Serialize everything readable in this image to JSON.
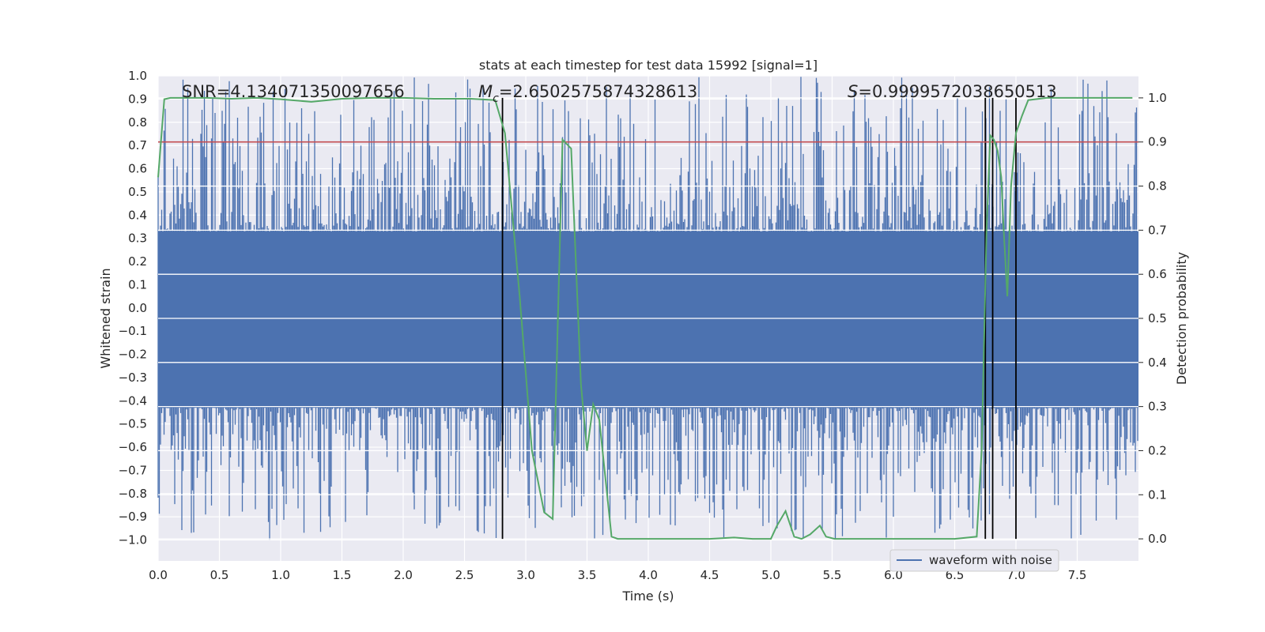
{
  "chart_data": {
    "type": "line",
    "title": "stats at each timestep for test data 15992 [signal=1]",
    "xlabel": "Time (s)",
    "ylabel": "Whitened strain",
    "y2label": "Detection probability",
    "xlim": [
      0.0,
      8.0
    ],
    "ylim": [
      -1.09,
      1.0
    ],
    "y2lim": [
      -0.05,
      1.05
    ],
    "x_ticks": [
      "0.0",
      "0.5",
      "1.0",
      "1.5",
      "2.0",
      "2.5",
      "3.0",
      "3.5",
      "4.0",
      "4.5",
      "5.0",
      "5.5",
      "6.0",
      "6.5",
      "7.0",
      "7.5"
    ],
    "y_ticks": [
      "1.0",
      "0.9",
      "0.8",
      "0.7",
      "0.6",
      "0.5",
      "0.4",
      "0.3",
      "0.2",
      "0.1",
      "0.0",
      "−0.1",
      "−0.2",
      "−0.3",
      "−0.4",
      "−0.5",
      "−0.6",
      "−0.7",
      "−0.8",
      "−0.9",
      "−1.0"
    ],
    "y2_ticks": [
      "1.0",
      "0.9",
      "0.8",
      "0.7",
      "0.6",
      "0.5",
      "0.4",
      "0.3",
      "0.2",
      "0.1",
      "0.0"
    ],
    "grid": true,
    "legend": {
      "placement": "lower-right",
      "entries": [
        "waveform with noise"
      ]
    },
    "annotations": {
      "snr": "SNR=4.134071350097656",
      "mc_symbol": "M",
      "mc_sub": "c",
      "mc_value": "=2.6502575874328613",
      "s_symbol": "S",
      "s_value": "=0.9999572038650513"
    },
    "threshold": 0.9,
    "vertical_lines": [
      2.81,
      6.75,
      6.81,
      7.0
    ],
    "waveform": {
      "name": "waveform with noise",
      "band": [
        -0.43,
        0.33
      ],
      "spike_max": 1.0,
      "spike_min": -1.0
    },
    "detection_probability": {
      "x": [
        0.0,
        0.05,
        0.1,
        0.2,
        0.4,
        0.6,
        0.8,
        1.0,
        1.25,
        1.5,
        1.75,
        2.0,
        2.25,
        2.4,
        2.55,
        2.75,
        2.83,
        2.95,
        3.05,
        3.15,
        3.22,
        3.3,
        3.37,
        3.45,
        3.5,
        3.55,
        3.6,
        3.7,
        3.75,
        4.0,
        4.5,
        4.7,
        4.85,
        5.0,
        5.05,
        5.12,
        5.19,
        5.25,
        5.32,
        5.4,
        5.45,
        5.52,
        5.6,
        6.0,
        6.5,
        6.68,
        6.72,
        6.76,
        6.79,
        6.82,
        6.85,
        6.88,
        6.9,
        6.93,
        6.96,
        7.0,
        7.05,
        7.1,
        7.25,
        7.5,
        7.95
      ],
      "values": [
        0.82,
        0.997,
        1.0,
        1.0,
        1.0,
        0.998,
        1.0,
        0.997,
        0.991,
        0.998,
        1.0,
        1.0,
        0.998,
        0.998,
        0.998,
        0.995,
        0.92,
        0.55,
        0.2,
        0.06,
        0.045,
        0.905,
        0.885,
        0.35,
        0.2,
        0.305,
        0.27,
        0.005,
        0.0,
        0.0,
        0.0,
        0.003,
        0.0,
        0.0,
        0.03,
        0.063,
        0.005,
        0.0,
        0.01,
        0.03,
        0.005,
        0.0,
        0.0,
        0.0,
        0.0,
        0.005,
        0.2,
        0.7,
        0.915,
        0.905,
        0.88,
        0.82,
        0.7,
        0.55,
        0.8,
        0.92,
        0.96,
        0.995,
        1.0,
        1.0,
        1.0
      ]
    },
    "colors": {
      "background": "#eaeaf2",
      "grid": "#ffffff",
      "waveform": "#4c72b0",
      "probability": "#55a868",
      "threshold": "#c44e52",
      "vlines": "#000000"
    }
  }
}
